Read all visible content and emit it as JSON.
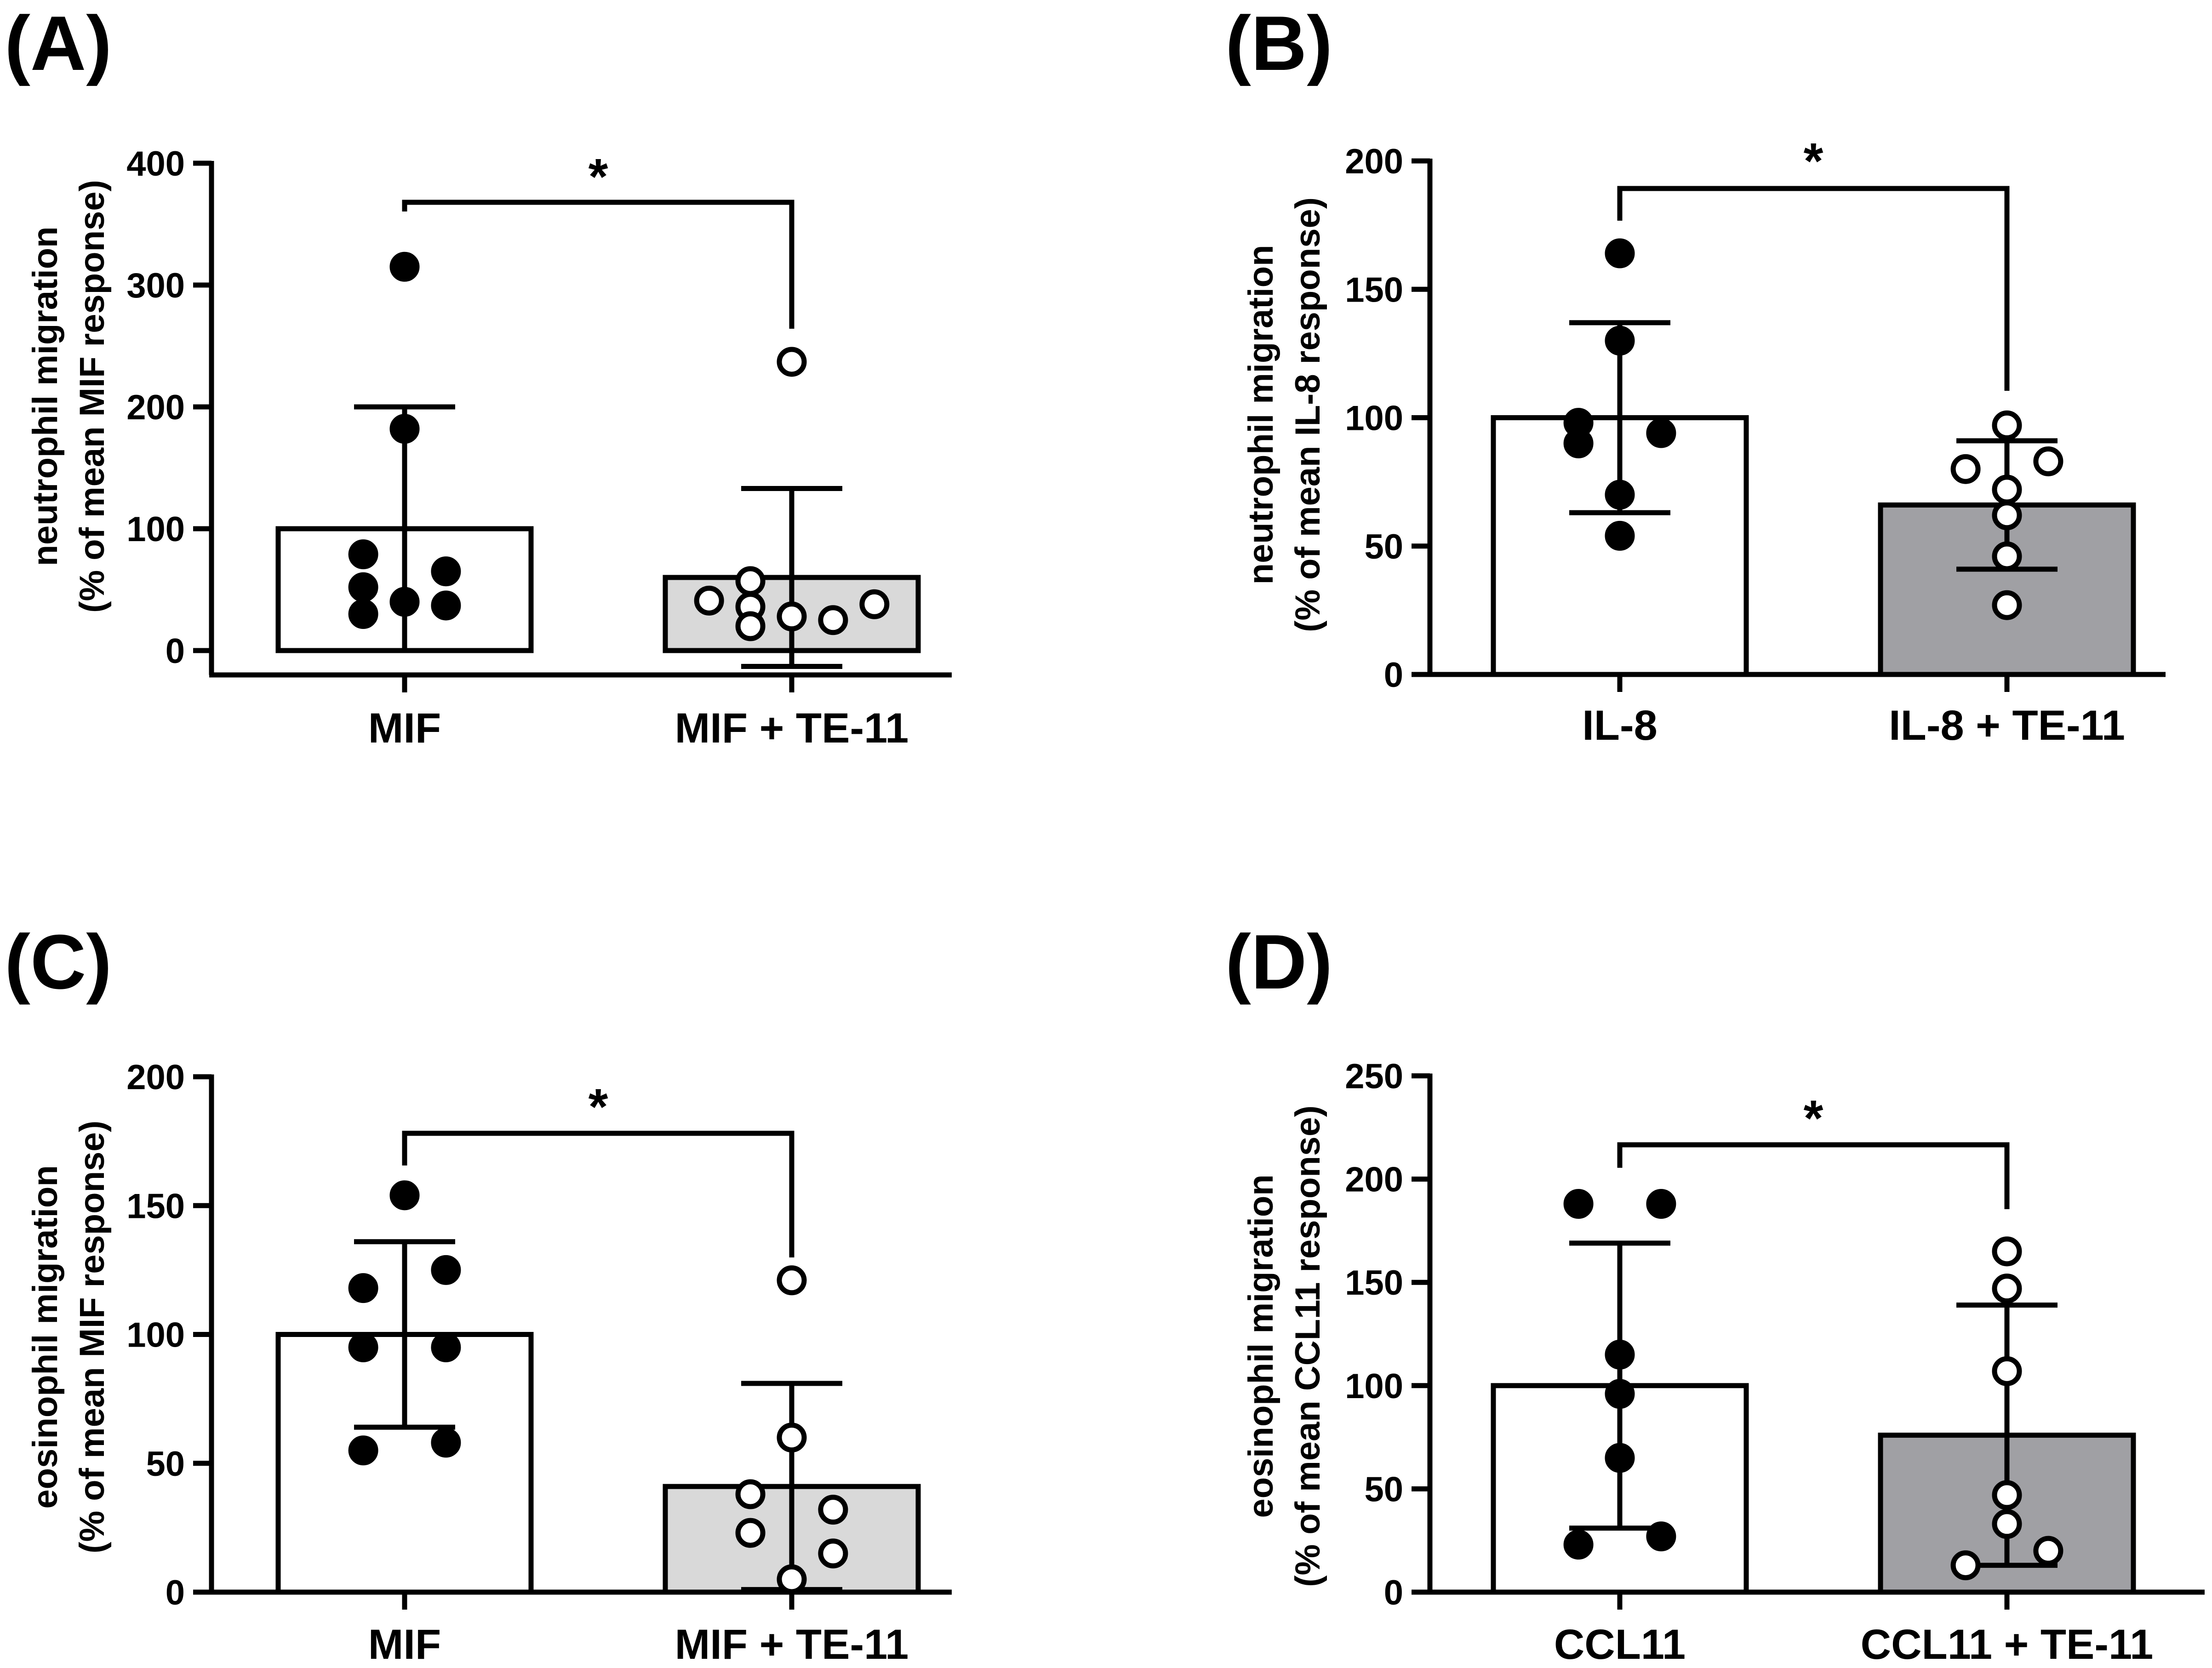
{
  "figure": {
    "background": "#ffffff"
  },
  "chart_data": [
    {
      "panel_label": "(A)",
      "type": "bar",
      "ylabel_line1": "neutrophil migration",
      "ylabel_line2": "(% of mean MIF response)",
      "ylim": [
        -20,
        400
      ],
      "yticks": [
        0,
        100,
        200,
        300,
        400
      ],
      "categories": [
        "MIF",
        "MIF + TE-11"
      ],
      "values": [
        100,
        60
      ],
      "sd": [
        100,
        73
      ],
      "bar_colors": [
        "#ffffff",
        "#d9d9d9"
      ],
      "marker_fill": [
        "#000000",
        "#ffffff"
      ],
      "points": [
        [
          {
            "dx": 0,
            "y": 315
          },
          {
            "dx": 0,
            "y": 182
          },
          {
            "dx": -0.3,
            "y": 79
          },
          {
            "dx": -0.3,
            "y": 52
          },
          {
            "dx": -0.3,
            "y": 30
          },
          {
            "dx": 0,
            "y": 40
          },
          {
            "dx": 0.3,
            "y": 65
          },
          {
            "dx": 0.3,
            "y": 37
          }
        ],
        [
          {
            "dx": 0,
            "y": 237
          },
          {
            "dx": -0.6,
            "y": 41
          },
          {
            "dx": -0.3,
            "y": 57
          },
          {
            "dx": -0.3,
            "y": 36
          },
          {
            "dx": -0.3,
            "y": 20
          },
          {
            "dx": 0,
            "y": 28
          },
          {
            "dx": 0.3,
            "y": 25
          },
          {
            "dx": 0.6,
            "y": 38
          }
        ]
      ],
      "significance": "*"
    },
    {
      "panel_label": "(B)",
      "type": "bar",
      "ylabel_line1": "neutrophil migration",
      "ylabel_line2": "(% of mean IL-8 response)",
      "ylim": [
        0,
        200
      ],
      "yticks": [
        0,
        50,
        100,
        150,
        200
      ],
      "categories": [
        "IL-8",
        "IL-8 + TE-11"
      ],
      "values": [
        100,
        66
      ],
      "sd": [
        37,
        25
      ],
      "bar_colors": [
        "#ffffff",
        "#a0a0a4"
      ],
      "marker_fill": [
        "#000000",
        "#ffffff"
      ],
      "points": [
        [
          {
            "dx": 0,
            "y": 164
          },
          {
            "dx": 0,
            "y": 130
          },
          {
            "dx": -0.3,
            "y": 98
          },
          {
            "dx": -0.3,
            "y": 90
          },
          {
            "dx": 0.3,
            "y": 94
          },
          {
            "dx": 0,
            "y": 70
          },
          {
            "dx": 0,
            "y": 54
          }
        ],
        [
          {
            "dx": 0,
            "y": 97
          },
          {
            "dx": -0.3,
            "y": 80
          },
          {
            "dx": 0.3,
            "y": 83
          },
          {
            "dx": 0,
            "y": 72
          },
          {
            "dx": 0,
            "y": 62
          },
          {
            "dx": 0,
            "y": 46
          },
          {
            "dx": 0,
            "y": 27
          }
        ]
      ],
      "significance": "*"
    },
    {
      "panel_label": "(C)",
      "type": "bar",
      "ylabel_line1": "eosinophil migration",
      "ylabel_line2": "(% of mean MIF response)",
      "ylim": [
        0,
        200
      ],
      "yticks": [
        0,
        50,
        100,
        150,
        200
      ],
      "categories": [
        "MIF",
        "MIF + TE-11"
      ],
      "values": [
        100,
        41
      ],
      "sd": [
        36,
        40
      ],
      "bar_colors": [
        "#ffffff",
        "#d9d9d9"
      ],
      "marker_fill": [
        "#000000",
        "#ffffff"
      ],
      "points": [
        [
          {
            "dx": 0,
            "y": 154
          },
          {
            "dx": -0.3,
            "y": 118
          },
          {
            "dx": 0.3,
            "y": 125
          },
          {
            "dx": -0.3,
            "y": 95
          },
          {
            "dx": 0.3,
            "y": 95
          },
          {
            "dx": -0.3,
            "y": 55
          },
          {
            "dx": 0.3,
            "y": 58
          }
        ],
        [
          {
            "dx": 0,
            "y": 121
          },
          {
            "dx": 0,
            "y": 60
          },
          {
            "dx": -0.3,
            "y": 38
          },
          {
            "dx": 0.3,
            "y": 32
          },
          {
            "dx": -0.3,
            "y": 23
          },
          {
            "dx": 0.3,
            "y": 15
          },
          {
            "dx": 0,
            "y": 5
          }
        ]
      ],
      "significance": "*"
    },
    {
      "panel_label": "(D)",
      "type": "bar",
      "ylabel_line1": "eosinophil migration",
      "ylabel_line2": "(% of mean CCL11 response)",
      "ylim": [
        0,
        250
      ],
      "yticks": [
        0,
        50,
        100,
        150,
        200,
        250
      ],
      "categories": [
        "CCL11",
        "CCL11 + TE-11"
      ],
      "values": [
        100,
        76
      ],
      "sd": [
        69,
        63
      ],
      "bar_colors": [
        "#ffffff",
        "#a0a0a4"
      ],
      "marker_fill": [
        "#000000",
        "#ffffff"
      ],
      "points": [
        [
          {
            "dx": -0.3,
            "y": 188
          },
          {
            "dx": 0.3,
            "y": 188
          },
          {
            "dx": 0,
            "y": 115
          },
          {
            "dx": 0,
            "y": 96
          },
          {
            "dx": 0,
            "y": 65
          },
          {
            "dx": -0.3,
            "y": 23
          },
          {
            "dx": 0.3,
            "y": 27
          }
        ],
        [
          {
            "dx": 0,
            "y": 165
          },
          {
            "dx": 0,
            "y": 147
          },
          {
            "dx": 0,
            "y": 107
          },
          {
            "dx": 0,
            "y": 47
          },
          {
            "dx": 0,
            "y": 33
          },
          {
            "dx": -0.3,
            "y": 13
          },
          {
            "dx": 0.3,
            "y": 20
          }
        ]
      ],
      "significance": "*"
    }
  ]
}
